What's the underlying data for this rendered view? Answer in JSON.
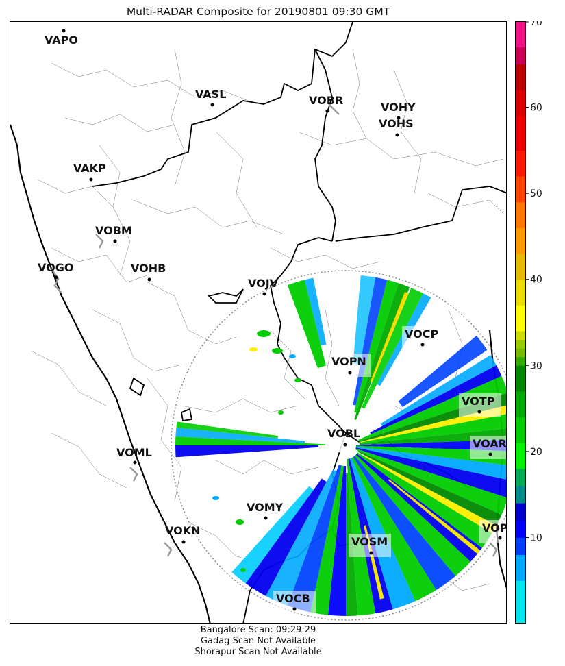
{
  "title": "Multi-RADAR Composite for 20190801 09:30 GMT",
  "footer": {
    "line1": "Bangalore Scan: 09:29:29",
    "line2": "Gadag Scan Not Available",
    "line3": "Shorapur Scan Not Available"
  },
  "stations": [
    {
      "code": "VAPO",
      "dot": true
    },
    {
      "code": "VASL",
      "dot": true
    },
    {
      "code": "VOBR",
      "dot": true
    },
    {
      "code": "VOHY",
      "dot": true
    },
    {
      "code": "VOHS",
      "dot": true
    },
    {
      "code": "VAKP",
      "dot": true
    },
    {
      "code": "VOBM",
      "dot": true
    },
    {
      "code": "VOGO",
      "dot": true
    },
    {
      "code": "VOHB",
      "dot": true
    },
    {
      "code": "VOJV",
      "dot": true
    },
    {
      "code": "VOCP",
      "dot": true
    },
    {
      "code": "VOPN",
      "dot": true
    },
    {
      "code": "VOTP",
      "dot": true
    },
    {
      "code": "VOBL",
      "dot": true
    },
    {
      "code": "VOAR",
      "dot": true
    },
    {
      "code": "VOML",
      "dot": true
    },
    {
      "code": "VOMY",
      "dot": true
    },
    {
      "code": "VOPC",
      "dot": true
    },
    {
      "code": "VOKN",
      "dot": true
    },
    {
      "code": "VOSM",
      "dot": true
    },
    {
      "code": "VOCB",
      "dot": true
    }
  ],
  "colorbar": {
    "min": 0,
    "max": 70,
    "ticks": [
      "10",
      "20",
      "30",
      "40",
      "50",
      "60",
      "70"
    ],
    "colors": {
      "cyan": "#00e5ee",
      "blue": "#0000ff",
      "teal": "#008b8b",
      "green": "#00cc00",
      "darkgreen": "#008800",
      "olive": "#99cc00",
      "yellow": "#ffff00",
      "orange": "#ff9900",
      "red": "#dd0000",
      "crimson": "#cc0055",
      "magenta": "#ff00ff"
    }
  }
}
